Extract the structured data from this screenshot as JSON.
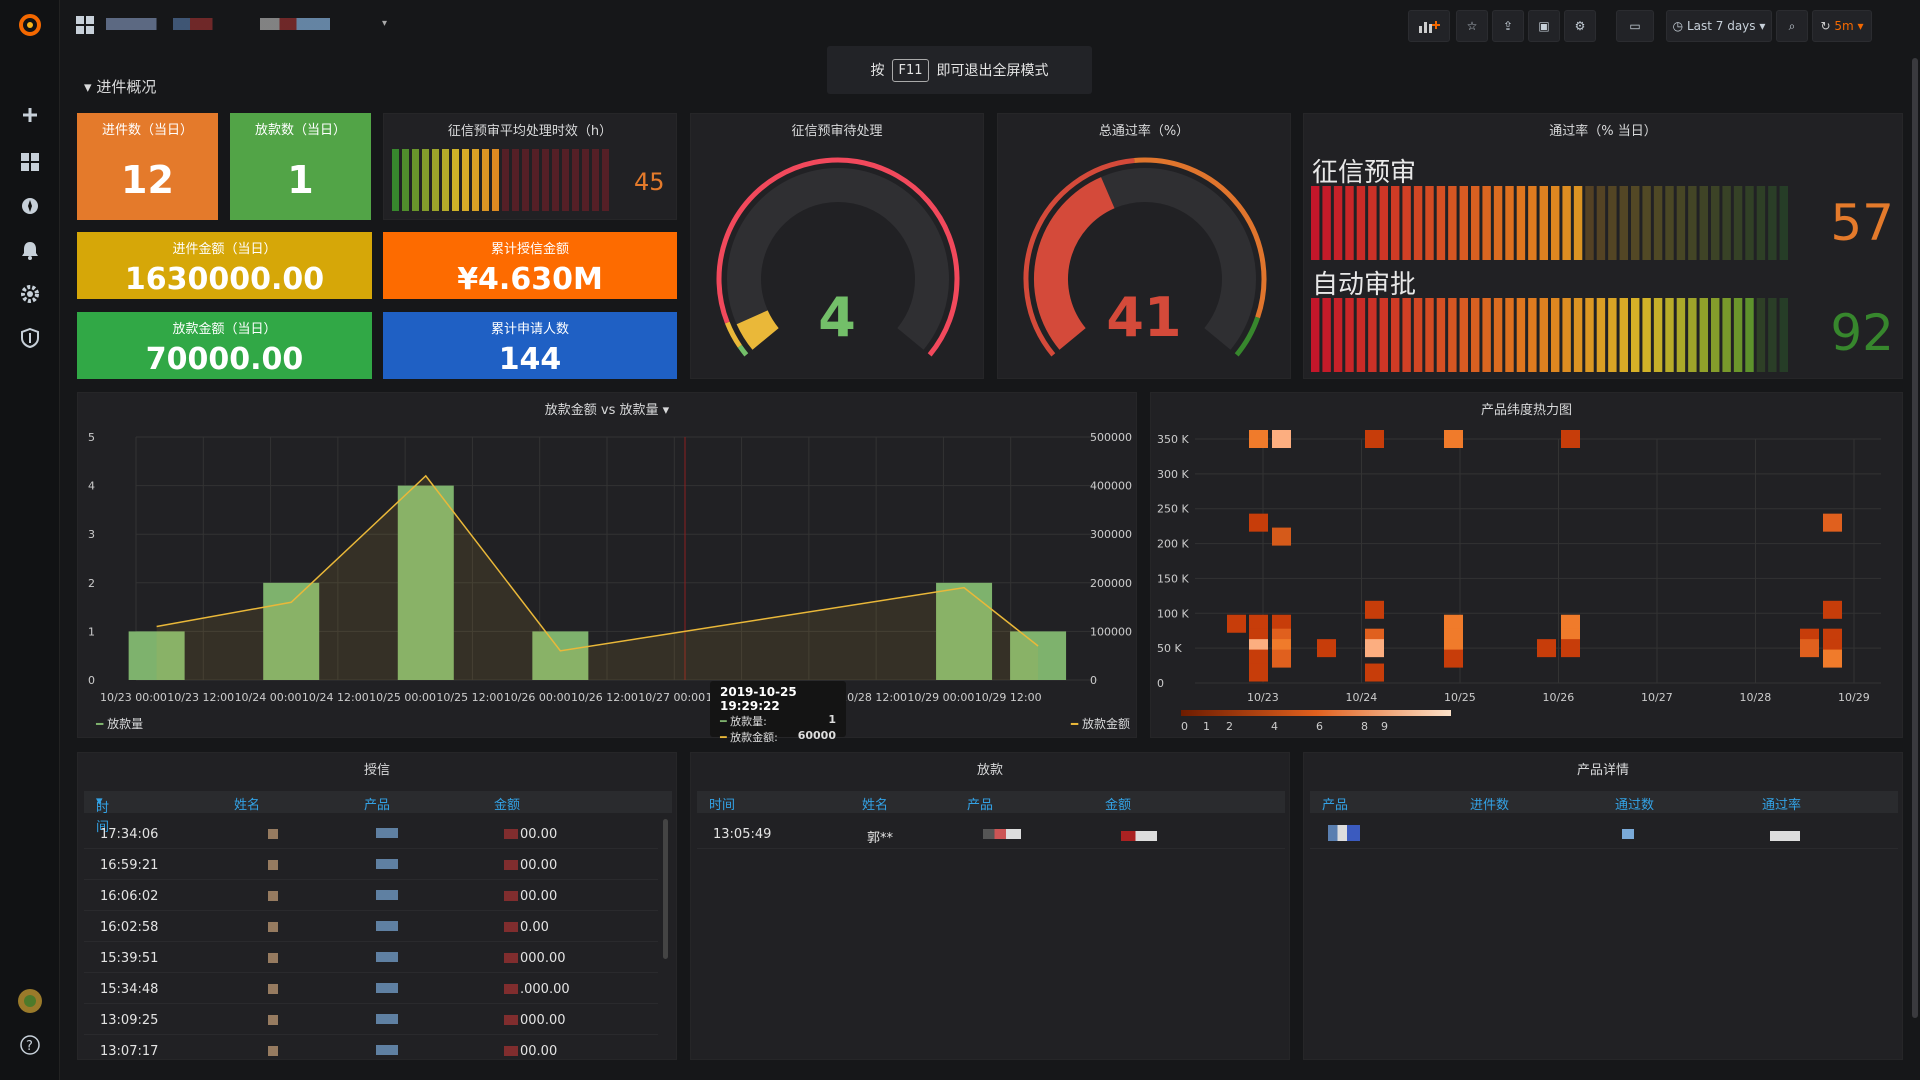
{
  "fullscreen_hint": {
    "pre": "按",
    "key": "F11",
    "post": "即可退出全屏模式"
  },
  "row_title": "进件概况",
  "topbar": {
    "time_range": "Last 7 days",
    "refresh": "5m"
  },
  "stats": {
    "jj_day": {
      "title": "进件数（当日）",
      "value": "12",
      "color": "#e47a2b"
    },
    "fk_day": {
      "title": "放款数（当日）",
      "value": "1",
      "color": "#52a447"
    },
    "jj_amt": {
      "title": "进件金额（当日）",
      "value": "1630000.00",
      "color": "#d6a708"
    },
    "lj_sx": {
      "title": "累计授信金额",
      "value": "¥4.630M",
      "color": "#fd6b00"
    },
    "fk_amt": {
      "title": "放款金额（当日）",
      "value": "70000.00",
      "color": "#31a846"
    },
    "lj_sq": {
      "title": "累计申请人数",
      "value": "144",
      "color": "#1f60c4"
    }
  },
  "bargauge_small": {
    "title": "征信预审平均处理时效（h）",
    "value": "45",
    "fill_fraction": 0.5
  },
  "gauge1": {
    "title": "征信预审待处理",
    "value": "4",
    "fraction": 0.06
  },
  "gauge2": {
    "title": "总通过率（%）",
    "value": "41",
    "fraction": 0.41
  },
  "rate_panel": {
    "title": "通过率（% 当日）",
    "rows": [
      {
        "label": "征信预审",
        "value": "57",
        "fraction": 0.57
      },
      {
        "label": "自动审批",
        "value": "92",
        "fraction": 0.92
      }
    ]
  },
  "chart_main": {
    "title": "放款金额 vs 放款量",
    "legend_left": "放款量",
    "legend_right": "放款金额",
    "tooltip": {
      "time": "2019-10-25 19:29:22",
      "l1": "放款量:",
      "v1": "1",
      "l2": "放款金额:",
      "v2": "60000"
    }
  },
  "chart_data": [
    {
      "type": "bar",
      "title": "放款金额 vs 放款量",
      "x": [
        "10/23 00:00",
        "10/23 12:00",
        "10/24 00:00",
        "10/24 12:00",
        "10/25 00:00",
        "10/25 12:00",
        "10/26 00:00",
        "10/26 12:00",
        "10/27 00:00",
        "10/27 12:00",
        "10/28 00:00",
        "10/28 12:00",
        "10/29 00:00",
        "10/29 12:00"
      ],
      "series": [
        {
          "name": "放款量",
          "axis": "left",
          "points": [
            [
              "10/23 00:00",
              1
            ],
            [
              "10/24 00:00",
              2
            ],
            [
              "10/25 00:00",
              4
            ],
            [
              "10/26 00:00",
              1
            ],
            [
              "10/29 00:00",
              2
            ],
            [
              "10/29 12:00",
              1
            ]
          ]
        },
        {
          "name": "放款金额",
          "axis": "right",
          "type": "line",
          "points": [
            [
              "10/23 00:00",
              110000
            ],
            [
              "10/24 00:00",
              160000
            ],
            [
              "10/25 00:00",
              420000
            ],
            [
              "10/26 00:00",
              60000
            ],
            [
              "10/29 00:00",
              190000
            ],
            [
              "10/29 12:00",
              70000
            ]
          ]
        }
      ],
      "ylim_left": [
        0,
        5
      ],
      "ylim_right": [
        0,
        500000
      ],
      "yticks_left": [
        "0",
        "1",
        "2",
        "3",
        "4",
        "5"
      ],
      "yticks_right": [
        "0",
        "100000",
        "200000",
        "300000",
        "400000",
        "500000"
      ]
    },
    {
      "type": "heatmap",
      "title": "产品纬度热力图",
      "x_ticks": [
        "10/23",
        "10/24",
        "10/25",
        "10/26",
        "10/27",
        "10/28",
        "10/29"
      ],
      "y_ticks": [
        "0",
        "50 K",
        "100 K",
        "150 K",
        "200 K",
        "250 K",
        "300 K",
        "350 K"
      ],
      "legend_ticks": [
        "0",
        "1",
        "2",
        "4",
        "6",
        "8",
        "9"
      ]
    }
  ],
  "tables": {
    "sx": {
      "title": "授信",
      "headers": [
        "时间",
        "姓名",
        "产品",
        "金额"
      ],
      "rows": [
        "17:34:06",
        "16:59:21",
        "16:06:02",
        "16:02:58",
        "15:39:51",
        "15:34:48",
        "13:09:25",
        "13:07:17"
      ],
      "amounts": [
        "00.00",
        "00.00",
        "00.00",
        "0.00",
        "000.00",
        ".000.00",
        "000.00",
        "00.00"
      ]
    },
    "fk": {
      "title": "放款",
      "headers": [
        "时间",
        "姓名",
        "产品",
        "金额"
      ],
      "rows": [
        "13:05:49"
      ],
      "name": "郭**"
    },
    "cp": {
      "title": "产品详情",
      "headers": [
        "产品",
        "进件数",
        "通过数",
        "通过率"
      ]
    }
  }
}
